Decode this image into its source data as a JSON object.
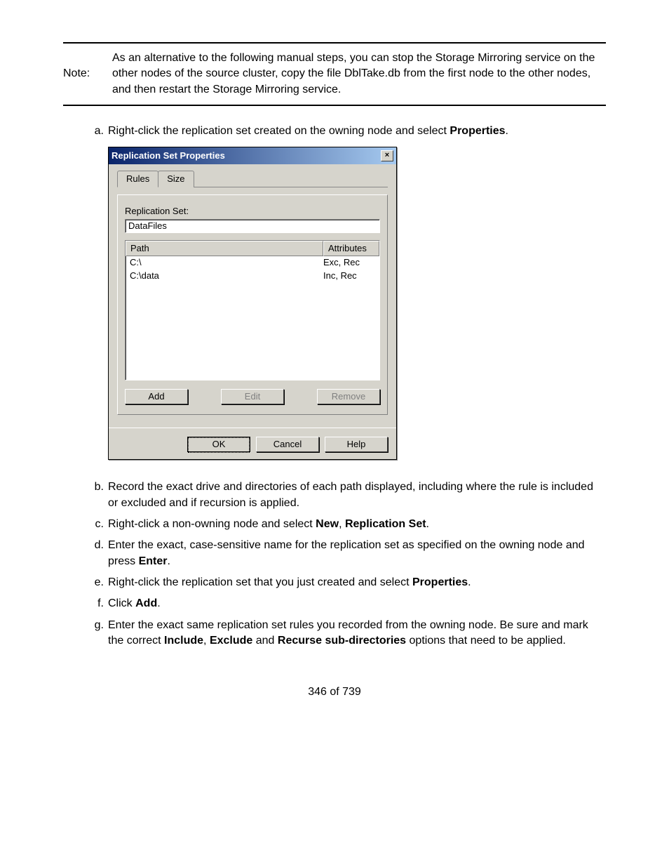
{
  "note": {
    "label": "Note:",
    "text": "As an alternative to the following manual steps, you can stop the Storage Mirroring service on the other nodes of the source cluster, copy the file DblTake.db from the first node to the other nodes, and then restart the Storage Mirroring service."
  },
  "steps": {
    "a_pre": "Right-click the replication set created on the owning node and select ",
    "a_bold": "Properties",
    "a_post": ".",
    "b": "Record the exact drive and directories of each path displayed, including where the rule is included or excluded and if recursion is applied.",
    "c_pre": "Right-click a non-owning node and select ",
    "c_b1": "New",
    "c_mid": ", ",
    "c_b2": "Replication Set",
    "c_post": ".",
    "d_pre": "Enter the exact, case-sensitive name for the replication set as specified on the owning node and press ",
    "d_bold": "Enter",
    "d_post": ".",
    "e_pre": "Right-click the replication set that you just created and select ",
    "e_bold": "Properties",
    "e_post": ".",
    "f_pre": "Click ",
    "f_bold": "Add",
    "f_post": ".",
    "g_pre": "Enter the exact same replication set rules you recorded from the owning node. Be sure and mark the correct ",
    "g_b1": "Include",
    "g_m1": ", ",
    "g_b2": "Exclude",
    "g_m2": " and ",
    "g_b3": "Recurse sub-directories",
    "g_post": " options that need to be applied."
  },
  "dialog": {
    "title": "Replication Set Properties",
    "close": "×",
    "tabs": {
      "rules": "Rules",
      "size": "Size"
    },
    "repset_label": "Replication Set:",
    "repset_value": "DataFiles",
    "columns": {
      "path": "Path",
      "attr": "Attributes"
    },
    "rows": [
      {
        "path": "C:\\",
        "attr": "Exc, Rec"
      },
      {
        "path": "C:\\data",
        "attr": "Inc, Rec"
      }
    ],
    "buttons": {
      "add": "Add",
      "edit": "Edit",
      "remove": "Remove",
      "ok": "OK",
      "cancel": "Cancel",
      "help": "Help"
    }
  },
  "pager": "346 of 739"
}
